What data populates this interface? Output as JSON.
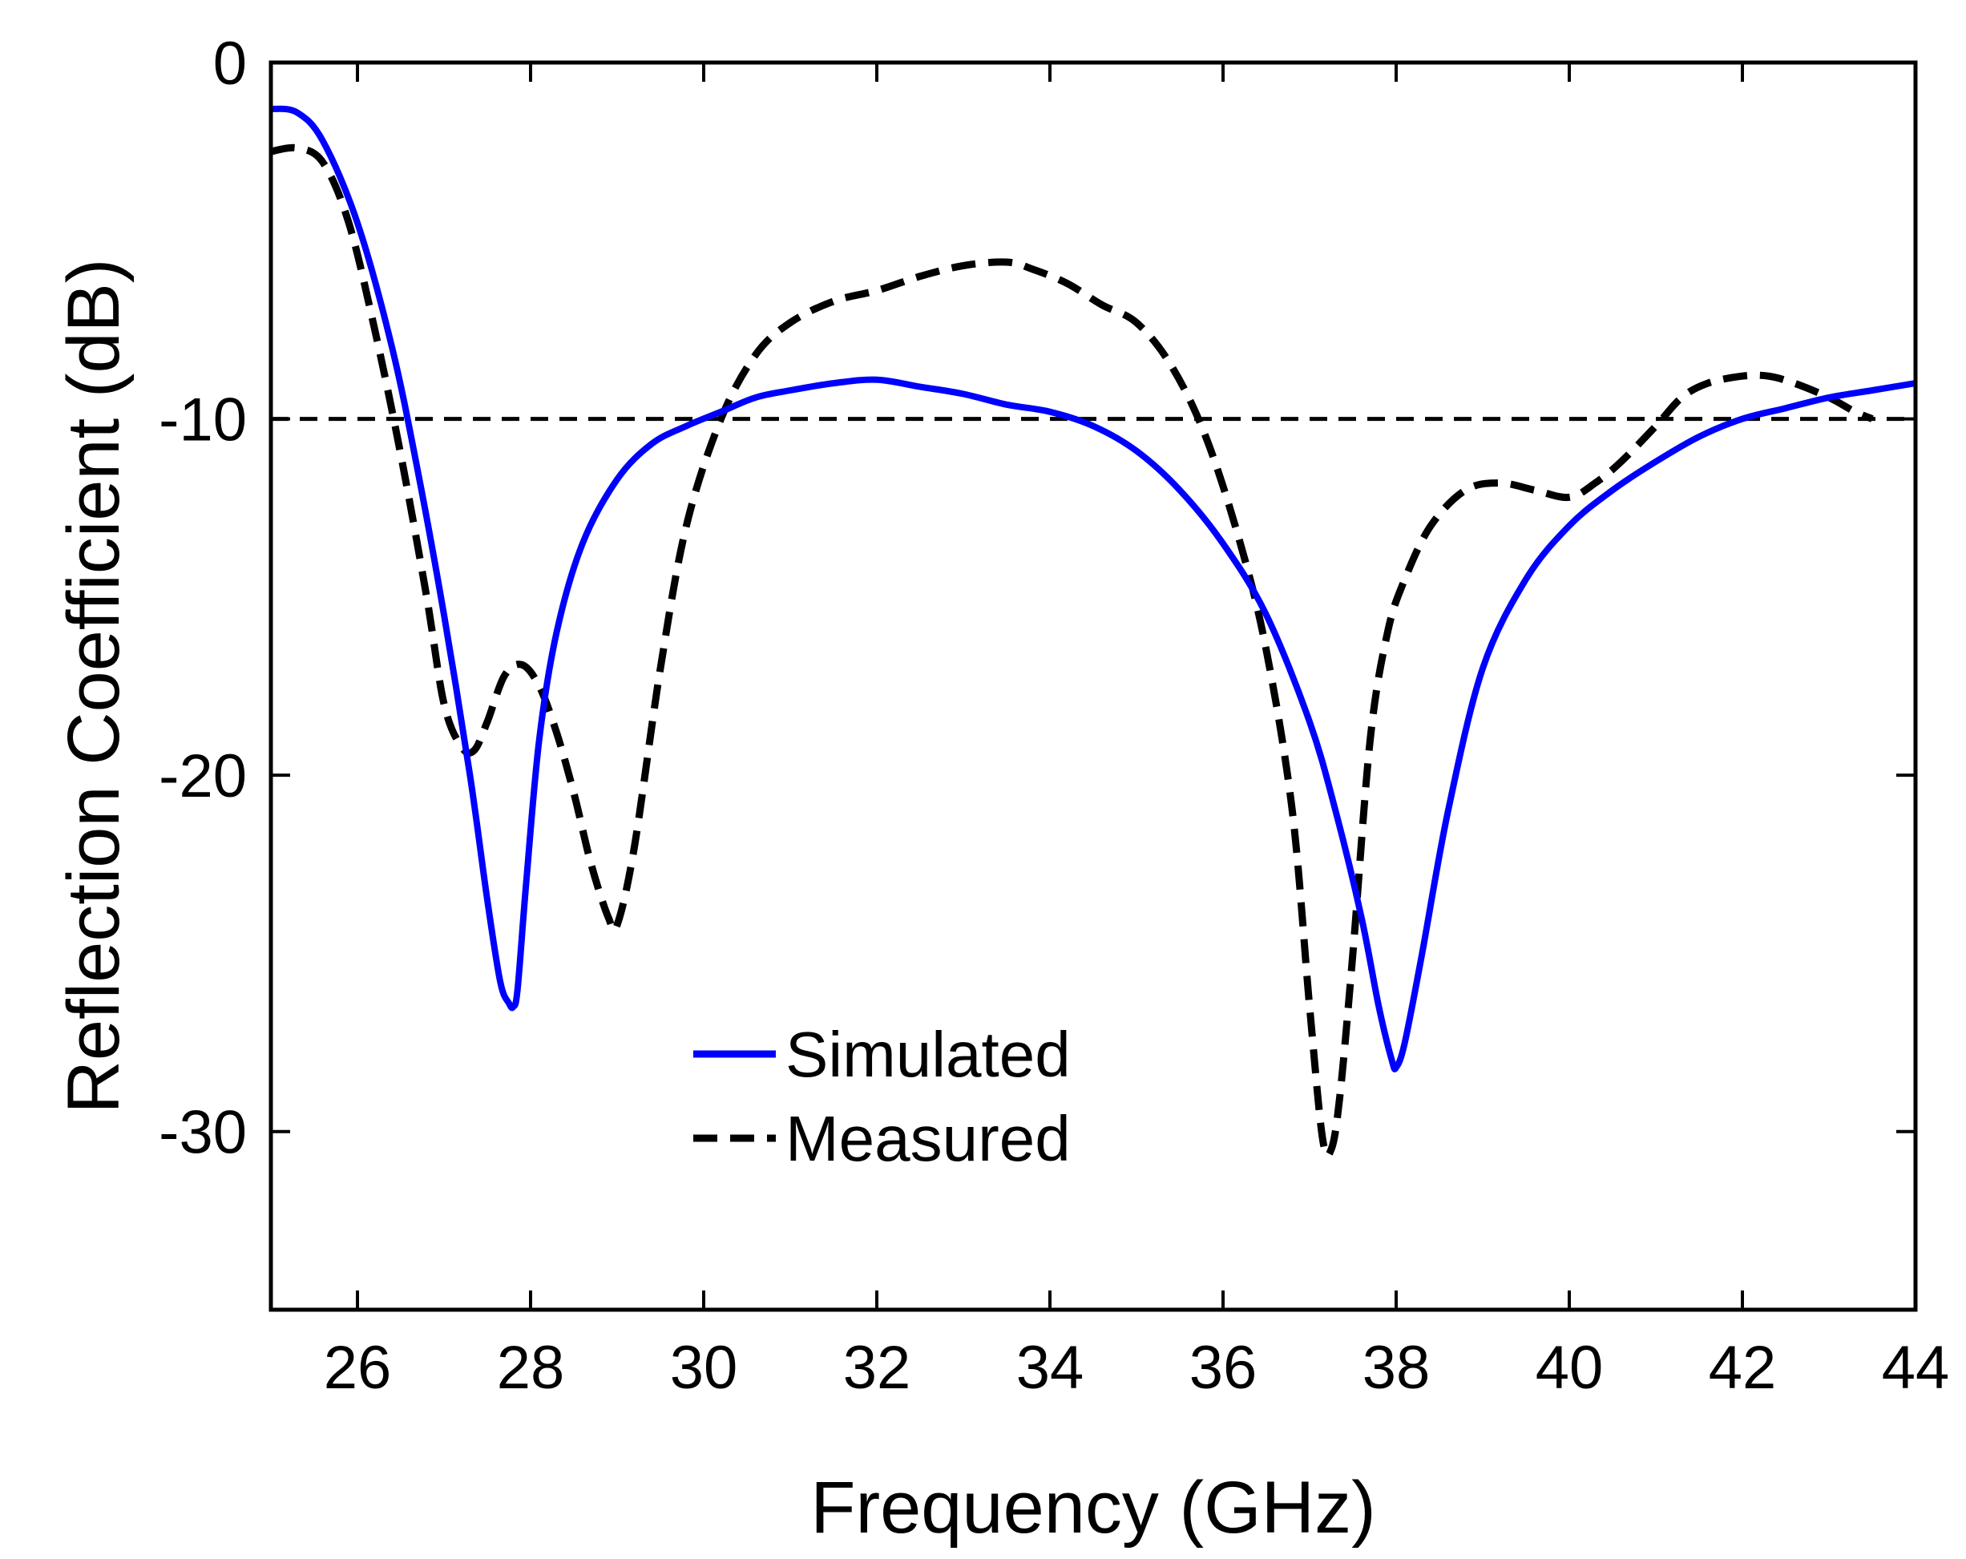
{
  "chart_data": {
    "type": "line",
    "title": "",
    "xlabel": "Frequency (GHz)",
    "ylabel": "Reflection Coefficient (dB)",
    "xlim": [
      25,
      44
    ],
    "ylim": [
      -35,
      0
    ],
    "xticks": [
      26,
      28,
      30,
      32,
      34,
      36,
      38,
      40,
      42,
      44
    ],
    "yticks": [
      0,
      -10,
      -20,
      -30
    ],
    "grid": false,
    "legend_position": "bottom-center",
    "reference_line": {
      "y": -10,
      "style": "dashed",
      "color": "#000000"
    },
    "series": [
      {
        "name": "Simulated",
        "color": "#0000ff",
        "style": "solid",
        "x": [
          25.0,
          25.3,
          25.6,
          26.0,
          26.4,
          26.7,
          27.0,
          27.3,
          27.5,
          27.65,
          27.75,
          27.8,
          27.85,
          27.95,
          28.1,
          28.3,
          28.6,
          29.0,
          29.4,
          29.8,
          30.2,
          30.6,
          31.0,
          31.5,
          32.0,
          32.5,
          33.0,
          33.5,
          34.0,
          34.5,
          35.0,
          35.5,
          36.0,
          36.5,
          37.0,
          37.3,
          37.6,
          37.8,
          37.95,
          38.0,
          38.1,
          38.3,
          38.6,
          39.0,
          39.5,
          40.0,
          40.5,
          41.0,
          41.5,
          42.0,
          42.5,
          43.0,
          43.5,
          44.0
        ],
        "values": [
          -1.3,
          -1.4,
          -2.2,
          -4.5,
          -8.0,
          -11.5,
          -15.5,
          -20.0,
          -23.5,
          -25.8,
          -26.4,
          -26.5,
          -26.0,
          -23.0,
          -19.0,
          -16.0,
          -13.5,
          -11.7,
          -10.7,
          -10.2,
          -9.8,
          -9.4,
          -9.2,
          -9.0,
          -8.9,
          -9.1,
          -9.3,
          -9.6,
          -9.8,
          -10.2,
          -10.9,
          -12.0,
          -13.5,
          -15.5,
          -18.5,
          -21.0,
          -24.0,
          -26.5,
          -28.0,
          -28.2,
          -27.5,
          -25.0,
          -21.0,
          -17.0,
          -14.5,
          -13.0,
          -12.0,
          -11.2,
          -10.5,
          -10.0,
          -9.7,
          -9.4,
          -9.2,
          -9.0
        ]
      },
      {
        "name": "Measured",
        "color": "#000000",
        "style": "dashed",
        "x": [
          25.0,
          25.3,
          25.6,
          25.9,
          26.2,
          26.5,
          26.8,
          27.0,
          27.2,
          27.35,
          27.5,
          27.7,
          27.9,
          28.1,
          28.3,
          28.5,
          28.7,
          28.9,
          29.0,
          29.2,
          29.5,
          29.8,
          30.2,
          30.6,
          31.0,
          31.5,
          32.0,
          32.5,
          33.0,
          33.5,
          33.8,
          34.2,
          34.6,
          35.0,
          35.4,
          35.8,
          36.2,
          36.5,
          36.8,
          37.0,
          37.15,
          37.25,
          37.35,
          37.5,
          37.7,
          37.9,
          38.1,
          38.4,
          38.8,
          39.2,
          39.6,
          40.0,
          40.3,
          40.6,
          41.0,
          41.3,
          41.6,
          42.0,
          42.3,
          42.6,
          43.0,
          43.3,
          43.5
        ],
        "values": [
          -2.5,
          -2.4,
          -2.8,
          -4.5,
          -7.5,
          -11.0,
          -15.0,
          -18.0,
          -19.2,
          -19.3,
          -18.5,
          -17.2,
          -16.9,
          -17.5,
          -18.8,
          -20.5,
          -22.5,
          -24.0,
          -24.2,
          -22.0,
          -17.0,
          -13.0,
          -10.0,
          -8.2,
          -7.3,
          -6.7,
          -6.4,
          -6.0,
          -5.7,
          -5.6,
          -5.8,
          -6.2,
          -6.8,
          -7.3,
          -8.5,
          -10.5,
          -13.5,
          -16.5,
          -21.0,
          -26.5,
          -30.2,
          -30.5,
          -29.0,
          -25.0,
          -19.0,
          -16.0,
          -14.5,
          -13.0,
          -12.0,
          -11.8,
          -12.0,
          -12.2,
          -11.8,
          -11.2,
          -10.2,
          -9.4,
          -9.0,
          -8.8,
          -8.8,
          -9.0,
          -9.4,
          -9.8,
          -10.0
        ]
      }
    ]
  }
}
